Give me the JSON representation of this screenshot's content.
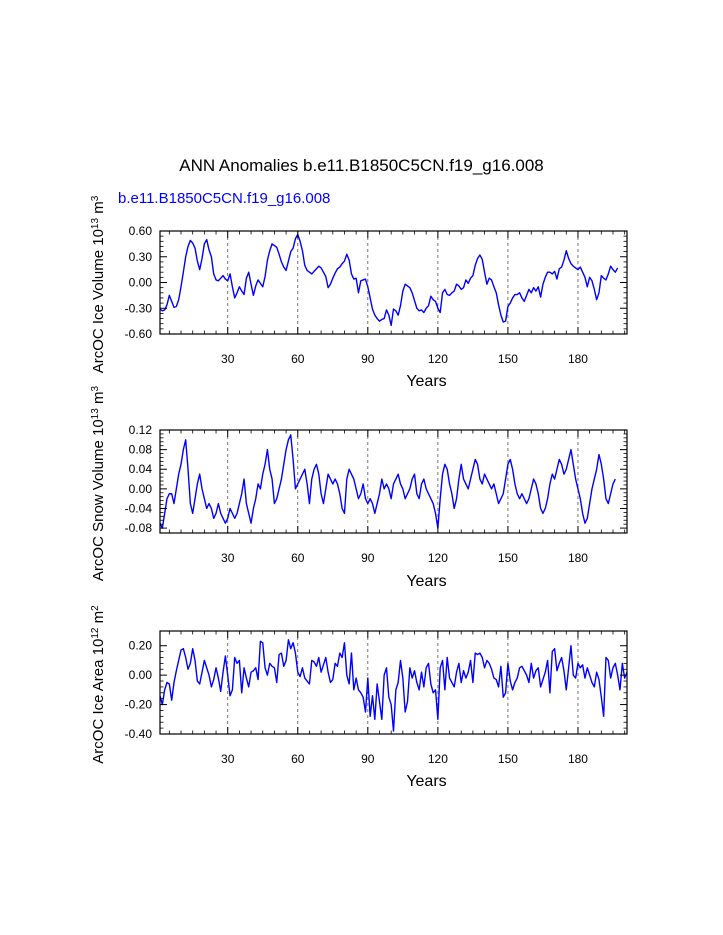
{
  "title": "ANN Anomalies b.e11.B1850C5CN.f19_g16.008",
  "case_label": "b.e11.B1850C5CN.f19_g16.008",
  "colors": {
    "series": "#0000ff",
    "case_label": "#0000ff",
    "axes": "#000000",
    "grid": "#555555"
  },
  "chart_data": [
    {
      "type": "line",
      "xlabel": "Years",
      "ylabel": "ArcOC Ice Volume 10^13 m^3",
      "ylabel_parts": [
        "ArcOC Ice Volume 10",
        "13",
        " m",
        "3"
      ],
      "xlim": [
        1,
        201
      ],
      "ylim": [
        -0.6,
        0.6
      ],
      "xticks": [
        30,
        60,
        90,
        120,
        150,
        180
      ],
      "yticks": [
        -0.6,
        -0.3,
        0.0,
        0.3,
        0.6
      ],
      "ytick_labels": [
        "-0.60",
        "-0.30",
        "0.00",
        "0.30",
        "0.60"
      ],
      "grid_x": true,
      "series": [
        {
          "color": "#0000ff",
          "x_start": 1,
          "values": [
            -0.31,
            -0.33,
            -0.32,
            -0.26,
            -0.15,
            -0.22,
            -0.29,
            -0.28,
            -0.2,
            -0.05,
            0.12,
            0.3,
            0.42,
            0.49,
            0.46,
            0.4,
            0.25,
            0.15,
            0.28,
            0.45,
            0.5,
            0.38,
            0.3,
            0.1,
            0.03,
            0.02,
            0.05,
            0.08,
            0.04,
            0.02,
            0.1,
            -0.05,
            -0.18,
            -0.12,
            -0.05,
            -0.1,
            -0.14,
            0.05,
            0.12,
            -0.02,
            -0.15,
            -0.04,
            0.03,
            -0.01,
            -0.05,
            0.07,
            0.26,
            0.37,
            0.45,
            0.43,
            0.41,
            0.33,
            0.24,
            0.18,
            0.14,
            0.25,
            0.36,
            0.4,
            0.51,
            0.56,
            0.48,
            0.37,
            0.2,
            0.14,
            0.12,
            0.1,
            0.13,
            0.16,
            0.19,
            0.17,
            0.12,
            0.07,
            -0.06,
            -0.02,
            0.05,
            0.11,
            0.16,
            0.18,
            0.22,
            0.25,
            0.33,
            0.26,
            0.1,
            0.04,
            0.05,
            -0.12,
            0.02,
            0.03,
            0.04,
            -0.05,
            -0.18,
            -0.31,
            -0.38,
            -0.42,
            -0.45,
            -0.43,
            -0.42,
            -0.32,
            -0.38,
            -0.5,
            -0.31,
            -0.33,
            -0.38,
            -0.27,
            -0.1,
            -0.02,
            -0.04,
            -0.06,
            -0.12,
            -0.21,
            -0.3,
            -0.33,
            -0.32,
            -0.35,
            -0.3,
            -0.27,
            -0.16,
            -0.2,
            -0.22,
            -0.3,
            -0.35,
            -0.12,
            -0.08,
            -0.14,
            -0.15,
            -0.12,
            -0.1,
            -0.02,
            -0.04,
            -0.08,
            -0.06,
            0.03,
            -0.01,
            0.05,
            0.08,
            0.2,
            0.28,
            0.32,
            0.27,
            0.12,
            -0.02,
            0.05,
            0.03,
            -0.05,
            -0.12,
            -0.26,
            -0.38,
            -0.46,
            -0.45,
            -0.28,
            -0.24,
            -0.18,
            -0.14,
            -0.14,
            -0.12,
            -0.18,
            -0.22,
            -0.15,
            -0.08,
            -0.12,
            -0.06,
            -0.1,
            -0.05,
            -0.17,
            -0.02,
            0.06,
            0.12,
            0.12,
            0.1,
            0.13,
            0.04,
            0.16,
            0.18,
            0.26,
            0.37,
            0.28,
            0.22,
            0.19,
            0.17,
            0.15,
            0.18,
            0.12,
            0.06,
            -0.05,
            0.06,
            0.02,
            -0.08,
            -0.2,
            -0.12,
            0.08,
            0.05,
            0.03,
            0.1,
            0.19,
            0.15,
            0.12,
            0.17
          ]
        }
      ]
    },
    {
      "type": "line",
      "xlabel": "Years",
      "ylabel": "ArcOC Snow Volume 10^13 m^3",
      "ylabel_parts": [
        "ArcOC Snow Volume 10",
        "13",
        " m",
        "3"
      ],
      "xlim": [
        1,
        201
      ],
      "ylim": [
        -0.09,
        0.12
      ],
      "xticks": [
        30,
        60,
        90,
        120,
        150,
        180
      ],
      "yticks": [
        -0.08,
        -0.04,
        0.0,
        0.04,
        0.08,
        0.12
      ],
      "ytick_labels": [
        "-0.08",
        "-0.04",
        "0.00",
        "0.04",
        "0.08",
        "0.12"
      ],
      "grid_x": true,
      "series": [
        {
          "color": "#0000ff",
          "x_start": 1,
          "values": [
            -0.07,
            -0.08,
            -0.05,
            -0.02,
            -0.01,
            -0.01,
            -0.03,
            0.0,
            0.03,
            0.05,
            0.08,
            0.1,
            0.04,
            -0.03,
            -0.05,
            -0.02,
            0.01,
            0.03,
            0.0,
            -0.02,
            -0.04,
            -0.03,
            -0.04,
            -0.06,
            -0.05,
            -0.03,
            -0.05,
            -0.06,
            -0.07,
            -0.06,
            -0.04,
            -0.05,
            -0.06,
            -0.05,
            -0.03,
            -0.01,
            0.02,
            -0.03,
            -0.05,
            -0.07,
            -0.04,
            -0.02,
            0.01,
            0.0,
            0.03,
            0.05,
            0.08,
            0.04,
            0.02,
            -0.03,
            -0.02,
            0.0,
            0.02,
            0.05,
            0.08,
            0.1,
            0.11,
            0.06,
            0.0,
            0.01,
            0.02,
            0.03,
            0.04,
            0.01,
            -0.03,
            0.02,
            0.04,
            0.05,
            0.03,
            -0.01,
            -0.03,
            0.0,
            0.03,
            0.02,
            0.01,
            0.02,
            0.01,
            -0.01,
            -0.04,
            -0.05,
            0.02,
            0.04,
            0.03,
            0.02,
            0.0,
            -0.02,
            -0.01,
            0.01,
            -0.02,
            -0.03,
            -0.02,
            -0.03,
            -0.05,
            -0.03,
            -0.01,
            0.02,
            0.0,
            0.01,
            0.0,
            -0.02,
            0.01,
            0.02,
            0.03,
            0.01,
            0.0,
            -0.02,
            -0.01,
            0.0,
            0.02,
            0.03,
            -0.01,
            -0.02,
            0.01,
            0.02,
            0.0,
            -0.01,
            -0.02,
            -0.03,
            -0.05,
            -0.08,
            -0.02,
            0.03,
            0.05,
            0.04,
            0.01,
            -0.01,
            -0.04,
            -0.02,
            0.02,
            0.05,
            0.02,
            0.01,
            0.0,
            0.02,
            0.04,
            0.06,
            0.05,
            0.02,
            0.01,
            0.03,
            0.02,
            0.01,
            0.0,
            0.01,
            -0.01,
            -0.03,
            -0.02,
            -0.01,
            0.02,
            0.05,
            0.06,
            0.04,
            0.01,
            -0.01,
            -0.02,
            -0.01,
            -0.02,
            -0.03,
            -0.02,
            0.0,
            0.02,
            0.01,
            -0.01,
            -0.04,
            -0.05,
            -0.04,
            -0.02,
            0.01,
            0.03,
            0.02,
            0.04,
            0.06,
            0.05,
            0.03,
            0.04,
            0.06,
            0.08,
            0.05,
            0.02,
            0.0,
            -0.02,
            -0.05,
            -0.07,
            -0.06,
            -0.03,
            0.0,
            0.02,
            0.04,
            0.07,
            0.05,
            0.02,
            -0.02,
            -0.03,
            -0.01,
            0.01,
            0.02
          ]
        }
      ]
    },
    {
      "type": "line",
      "xlabel": "Years",
      "ylabel": "ArcOC Ice Area 10^12 m^2",
      "ylabel_parts": [
        "ArcOC Ice Area 10",
        "12",
        " m",
        "2"
      ],
      "xlim": [
        1,
        201
      ],
      "ylim": [
        -0.4,
        0.3
      ],
      "xticks": [
        30,
        60,
        90,
        120,
        150,
        180
      ],
      "yticks": [
        -0.4,
        -0.2,
        0.0,
        0.2
      ],
      "ytick_labels": [
        "-0.40",
        "-0.20",
        "0.00",
        "0.20"
      ],
      "grid_x": true,
      "series": [
        {
          "color": "#0000ff",
          "x_start": 1,
          "values": [
            -0.14,
            -0.2,
            -0.1,
            -0.05,
            -0.06,
            -0.17,
            -0.05,
            0.03,
            0.1,
            0.17,
            0.18,
            0.12,
            0.04,
            0.08,
            0.18,
            0.1,
            -0.04,
            -0.06,
            0.02,
            0.1,
            0.05,
            0.0,
            -0.08,
            -0.03,
            0.05,
            -0.02,
            -0.11,
            0.02,
            0.13,
            0.0,
            -0.14,
            -0.1,
            0.12,
            0.08,
            0.1,
            -0.12,
            0.05,
            -0.02,
            -0.08,
            0.02,
            0.03,
            0.05,
            -0.03,
            0.23,
            0.22,
            0.05,
            0.0,
            0.08,
            0.06,
            0.05,
            -0.05,
            0.14,
            0.15,
            0.06,
            0.1,
            0.24,
            0.18,
            0.22,
            0.15,
            0.02,
            -0.01,
            0.05,
            -0.02,
            -0.04,
            -0.06,
            0.1,
            0.09,
            0.06,
            0.12,
            0.02,
            0.07,
            0.12,
            0.02,
            -0.05,
            -0.03,
            0.08,
            0.06,
            0.15,
            0.12,
            0.22,
            0.0,
            -0.06,
            0.15,
            -0.1,
            -0.02,
            -0.1,
            -0.12,
            -0.15,
            -0.25,
            -0.02,
            -0.28,
            -0.14,
            -0.3,
            -0.06,
            -0.18,
            -0.3,
            0.0,
            0.05,
            -0.15,
            -0.2,
            -0.38,
            -0.1,
            -0.05,
            0.1,
            -0.02,
            -0.25,
            -0.18,
            0.05,
            -0.02,
            0.03,
            -0.05,
            -0.1,
            0.02,
            -0.08,
            0.05,
            0.08,
            -0.06,
            -0.12,
            -0.1,
            -0.3,
            0.05,
            0.1,
            -0.1,
            0.12,
            -0.02,
            -0.05,
            -0.08,
            0.02,
            0.08,
            -0.05,
            0.03,
            -0.02,
            0.02,
            0.1,
            -0.05,
            0.15,
            0.14,
            0.15,
            0.12,
            0.05,
            0.1,
            0.08,
            0.04,
            -0.02,
            -0.03,
            -0.08,
            0.06,
            -0.15,
            -0.12,
            0.08,
            -0.04,
            -0.1,
            -0.05,
            -0.02,
            0.05,
            0.06,
            0.03,
            0.0,
            -0.05,
            0.08,
            -0.02,
            0.03,
            0.05,
            -0.08,
            -0.03,
            0.02,
            0.1,
            -0.12,
            0.16,
            0.18,
            0.03,
            0.08,
            0.12,
            0.03,
            -0.1,
            0.05,
            0.2,
            0.0,
            -0.02,
            0.08,
            0.05,
            0.07,
            -0.02,
            0.05,
            0.0,
            -0.05,
            -0.08,
            0.02,
            -0.03,
            -0.15,
            -0.28,
            0.12,
            0.1,
            -0.02,
            0.05,
            0.08,
            0.0,
            -0.1,
            0.08,
            -0.02,
            0.02
          ]
        }
      ]
    }
  ]
}
